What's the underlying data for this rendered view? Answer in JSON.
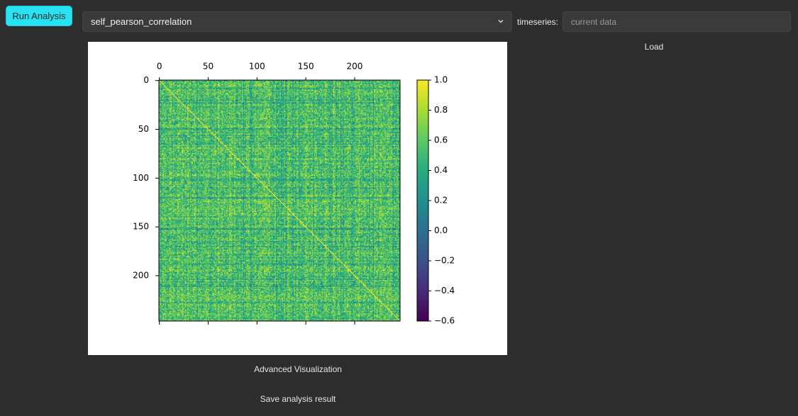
{
  "toolbar": {
    "run_label": "Run Analysis",
    "analysis_selected": "self_pearson_correlation",
    "timeseries_label": "timeseries:",
    "timeseries_placeholder": "current data",
    "load_label": "Load"
  },
  "actions": {
    "advanced_label": "Advanced Visualization",
    "save_label": "Save analysis result"
  },
  "colors": {
    "run_button": "#27e3f2",
    "background": "#2d2d2d",
    "colormap": "viridis"
  },
  "icons": {
    "select_chevron": "chevron-down-icon"
  },
  "chart_data": {
    "type": "heatmap",
    "colormap": "viridis",
    "matrix_size": 247,
    "diagonal_value": 1.0,
    "x_ticks": [
      "0",
      "50",
      "100",
      "150",
      "200"
    ],
    "y_ticks": [
      "0",
      "50",
      "100",
      "150",
      "200"
    ],
    "x_tick_values": [
      0,
      50,
      100,
      150,
      200
    ],
    "y_tick_values": [
      0,
      50,
      100,
      150,
      200
    ],
    "x_axis_position": "top",
    "colorbar": {
      "vmin": -0.6,
      "vmax": 1.0,
      "ticks": [
        "1.0",
        "0.8",
        "0.6",
        "0.4",
        "0.2",
        "0.0",
        "−0.2",
        "−0.4",
        "−0.6"
      ],
      "tick_values": [
        1.0,
        0.8,
        0.6,
        0.4,
        0.2,
        0.0,
        -0.2,
        -0.4,
        -0.6
      ]
    }
  }
}
